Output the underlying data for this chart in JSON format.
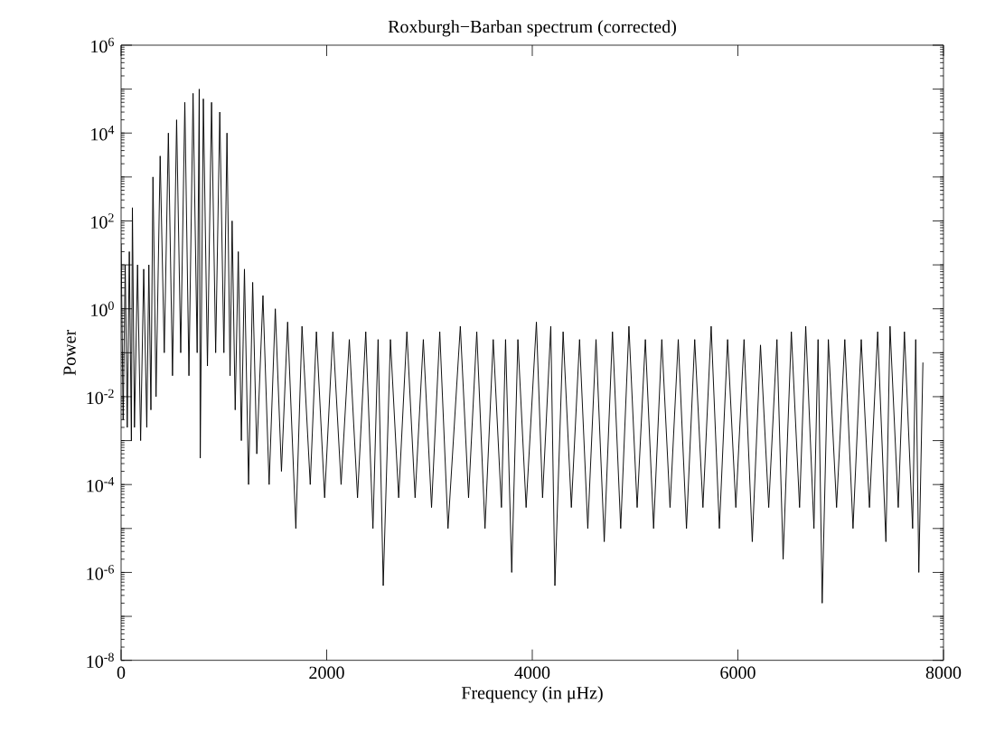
{
  "chart_data": {
    "type": "line",
    "title": "Roxburgh−Barban spectrum (corrected)",
    "xlabel": "Frequency (in μHz)",
    "ylabel": "Power",
    "log": "y",
    "xlim": [
      0,
      8000
    ],
    "xticks": [
      0,
      2000,
      4000,
      6000,
      8000
    ],
    "ylim": [
      1e-08,
      1000000.0
    ],
    "yticks": [
      {
        "value": 1e-08,
        "label": "10$^{-8}$"
      },
      {
        "value": 1e-07,
        "label": null
      },
      {
        "value": 1e-06,
        "label": "10$^{-6}$"
      },
      {
        "value": 1e-05,
        "label": null
      },
      {
        "value": 0.0001,
        "label": "10$^{-4}$"
      },
      {
        "value": 0.001,
        "label": null
      },
      {
        "value": 0.01,
        "label": "10$^{-2}$"
      },
      {
        "value": 0.1,
        "label": null
      },
      {
        "value": 1,
        "label": "10$^{0}$"
      },
      {
        "value": 10,
        "label": null
      },
      {
        "value": 100,
        "label": "10$^{2}$"
      },
      {
        "value": 1000,
        "label": null
      },
      {
        "value": 10000,
        "label": "10$^{4}$"
      },
      {
        "value": 100000,
        "label": null
      },
      {
        "value": 1000000,
        "label": "10$^{6}$"
      }
    ],
    "series": [
      {
        "color": "#000000",
        "line_style": "solid",
        "x": [
          0,
          20,
          40,
          60,
          80,
          100,
          110,
          130,
          160,
          190,
          220,
          250,
          270,
          290,
          310,
          340,
          380,
          420,
          460,
          500,
          540,
          580,
          620,
          660,
          700,
          740,
          760,
          770,
          800,
          840,
          880,
          920,
          960,
          1000,
          1030,
          1060,
          1080,
          1110,
          1140,
          1170,
          1200,
          1240,
          1280,
          1320,
          1380,
          1440,
          1500,
          1560,
          1620,
          1700,
          1760,
          1840,
          1900,
          1980,
          2060,
          2140,
          2220,
          2300,
          2380,
          2450,
          2500,
          2550,
          2620,
          2700,
          2780,
          2860,
          2940,
          3020,
          3100,
          3180,
          3300,
          3380,
          3460,
          3540,
          3620,
          3700,
          3740,
          3800,
          3860,
          3940,
          4040,
          4100,
          4180,
          4220,
          4300,
          4380,
          4460,
          4540,
          4620,
          4700,
          4780,
          4860,
          4940,
          5020,
          5100,
          5180,
          5260,
          5340,
          5420,
          5500,
          5580,
          5660,
          5740,
          5820,
          5900,
          5980,
          6060,
          6140,
          6220,
          6300,
          6380,
          6440,
          6520,
          6600,
          6660,
          6740,
          6780,
          6820,
          6880,
          6960,
          7040,
          7120,
          7200,
          7280,
          7360,
          7440,
          7480,
          7560,
          7620,
          7700,
          7730,
          7760,
          7800
        ],
        "values": [
          30,
          0.003,
          10,
          0.002,
          20,
          0.001,
          200,
          0.002,
          10,
          0.001,
          8,
          0.002,
          10,
          0.005,
          1000,
          0.01,
          3000,
          0.1,
          10000,
          0.03,
          20000,
          0.1,
          50000,
          0.03,
          80000,
          0.1,
          100000,
          0.0004,
          60000,
          0.05,
          50000,
          0.1,
          30000,
          0.1,
          10000,
          0.03,
          100,
          0.005,
          20,
          0.001,
          8,
          0.0001,
          4,
          0.0005,
          2,
          0.0001,
          1,
          0.0002,
          0.5,
          1e-05,
          0.4,
          0.0001,
          0.3,
          5e-05,
          0.3,
          0.0001,
          0.2,
          5e-05,
          0.3,
          1e-05,
          0.2,
          5e-07,
          0.2,
          5e-05,
          0.3,
          5e-05,
          0.2,
          3e-05,
          0.3,
          1e-05,
          0.4,
          5e-05,
          0.3,
          1e-05,
          0.2,
          3e-05,
          0.2,
          1e-06,
          0.2,
          3e-05,
          0.5,
          5e-05,
          0.4,
          5e-07,
          0.3,
          3e-05,
          0.2,
          1e-05,
          0.2,
          5e-06,
          0.3,
          1e-05,
          0.4,
          3e-05,
          0.2,
          1e-05,
          0.2,
          3e-05,
          0.2,
          1e-05,
          0.2,
          3e-05,
          0.4,
          1e-05,
          0.2,
          3e-05,
          0.2,
          5e-06,
          0.15,
          3e-05,
          0.2,
          2e-06,
          0.3,
          3e-05,
          0.4,
          1e-05,
          0.2,
          2e-07,
          0.2,
          3e-05,
          0.2,
          1e-05,
          0.2,
          3e-05,
          0.3,
          5e-06,
          0.4,
          3e-05,
          0.3,
          1e-05,
          0.2,
          1e-06,
          0.06
        ]
      }
    ]
  }
}
